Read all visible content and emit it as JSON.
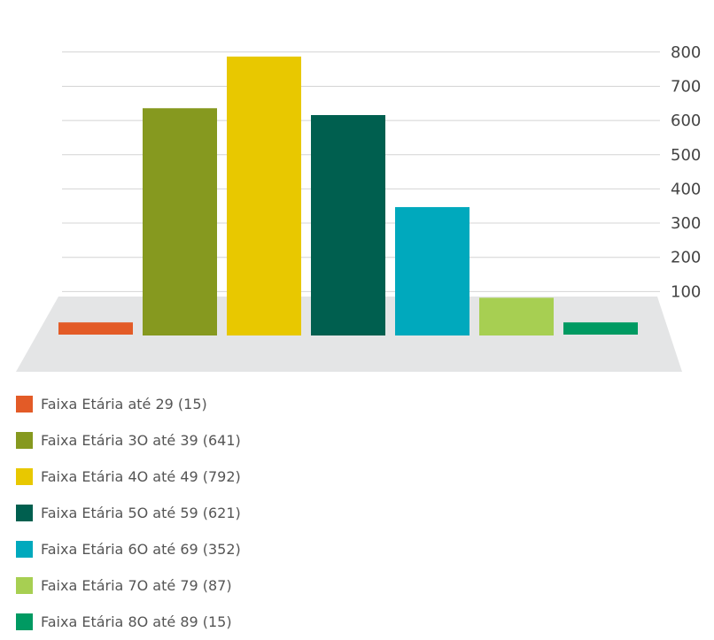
{
  "chart_data": {
    "type": "bar",
    "categories": [
      "Faixa Etária até 29",
      "Faixa Etária 30 até 39",
      "Faixa Etária 40 até 49",
      "Faixa Etária 50 até 59",
      "Faixa Etária 60 até 69",
      "Faixa Etária 70 até 79",
      "Faixa Etária 80 até 89"
    ],
    "values": [
      15,
      641,
      792,
      621,
      352,
      87,
      15
    ],
    "colors": [
      "#e35b27",
      "#86991f",
      "#e8c800",
      "#005f4f",
      "#00a9bd",
      "#a7cf52",
      "#009a62"
    ],
    "yticks": [
      "100",
      "200",
      "300",
      "400",
      "500",
      "600",
      "700",
      "800"
    ],
    "ylim": [
      0,
      800
    ],
    "grid": true,
    "floor_color": "#e4e5e6",
    "grid_color": "#d4d4d4",
    "legend": {
      "placement": "bottom-left",
      "entries": [
        "Faixa Etária até 29 (15)",
        "Faixa Etária 3O até 39 (641)",
        "Faixa Etária 4O até 49 (792)",
        "Faixa Etária 5O até 59 (621)",
        "Faixa Etária 6O até 69  (352)",
        "Faixa Etária 7O até 79 (87)",
        "Faixa Etária 8O até 89 (15)"
      ]
    }
  }
}
